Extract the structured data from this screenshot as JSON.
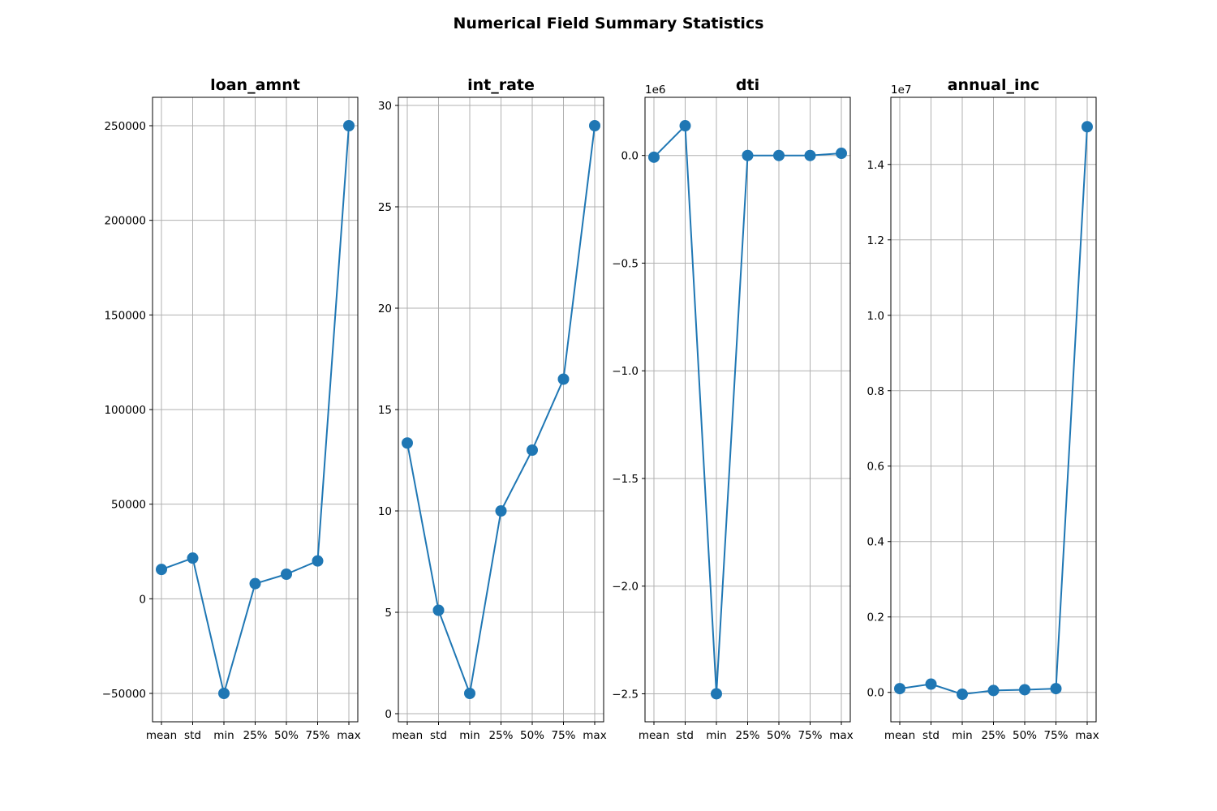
{
  "figure_title": "Numerical Field Summary Statistics",
  "colors": {
    "series": "#1f77b4",
    "grid": "#b0b0b0"
  },
  "chart_data": [
    {
      "type": "line",
      "title": "loan_amnt",
      "categories": [
        "mean",
        "std",
        "min",
        "25%",
        "50%",
        "75%",
        "max"
      ],
      "series": [
        {
          "values": [
            15500,
            21500,
            -50000,
            8000,
            13000,
            20000,
            250000
          ]
        }
      ],
      "ylim": [
        -65000,
        265000
      ],
      "yticks": [
        -50000,
        0,
        50000,
        100000,
        150000,
        200000,
        250000
      ],
      "ytick_labels": [
        "−50000",
        "0",
        "50000",
        "100000",
        "150000",
        "200000",
        "250000"
      ],
      "offset_text": "",
      "grid": true,
      "marker": "circle"
    },
    {
      "type": "line",
      "title": "int_rate",
      "categories": [
        "mean",
        "std",
        "min",
        "25%",
        "50%",
        "75%",
        "max"
      ],
      "series": [
        {
          "values": [
            13.35,
            5.1,
            1.0,
            10.0,
            13.0,
            16.5,
            29.0
          ]
        }
      ],
      "ylim": [
        -0.4,
        30.4
      ],
      "yticks": [
        0,
        5,
        10,
        15,
        20,
        25,
        30
      ],
      "ytick_labels": [
        "0",
        "5",
        "10",
        "15",
        "20",
        "25",
        "30"
      ],
      "offset_text": "",
      "grid": true,
      "marker": "circle"
    },
    {
      "type": "line",
      "title": "dti",
      "categories": [
        "mean",
        "std",
        "min",
        "25%",
        "50%",
        "75%",
        "max"
      ],
      "series": [
        {
          "values": [
            -0.008,
            0.138,
            -2.5,
            0.0,
            0.0,
            0.0,
            0.01
          ]
        }
      ],
      "ylim": [
        -2.63,
        0.27
      ],
      "yticks": [
        -2.5,
        -2.0,
        -1.5,
        -1.0,
        -0.5,
        0.0
      ],
      "ytick_labels": [
        "−2.5",
        "−2.0",
        "−1.5",
        "−1.0",
        "−0.5",
        "0.0"
      ],
      "offset_text": "1e6",
      "grid": true,
      "marker": "circle"
    },
    {
      "type": "line",
      "title": "annual_inc",
      "categories": [
        "mean",
        "std",
        "min",
        "25%",
        "50%",
        "75%",
        "max"
      ],
      "series": [
        {
          "values": [
            0.01,
            0.022,
            -0.005,
            0.005,
            0.007,
            0.01,
            1.5
          ]
        }
      ],
      "ylim": [
        -0.078,
        1.578
      ],
      "yticks": [
        0.0,
        0.2,
        0.4,
        0.6,
        0.8,
        1.0,
        1.2,
        1.4
      ],
      "ytick_labels": [
        "0.0",
        "0.2",
        "0.4",
        "0.6",
        "0.8",
        "1.0",
        "1.2",
        "1.4"
      ],
      "offset_text": "1e7",
      "grid": true,
      "marker": "circle"
    }
  ]
}
